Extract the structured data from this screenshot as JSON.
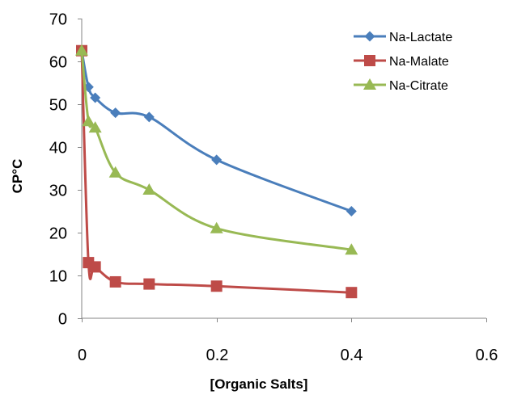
{
  "chart_data": {
    "type": "line",
    "title": "",
    "xlabel": "[Organic Salts]",
    "ylabel": "CP°C",
    "xlim": [
      0,
      0.6
    ],
    "ylim": [
      0,
      70
    ],
    "xticks": [
      0,
      0.2,
      0.4,
      0.6
    ],
    "xtick_labels": [
      "0",
      "0.2",
      "0.4",
      "0.6"
    ],
    "yticks": [
      0,
      10,
      20,
      30,
      40,
      50,
      60,
      70
    ],
    "ytick_labels": [
      "0",
      "10",
      "20",
      "30",
      "40",
      "50",
      "60",
      "70"
    ],
    "grid": false,
    "smooth": true,
    "legend": {
      "position": "top-right"
    },
    "series": [
      {
        "name": "Na-Lactate",
        "color": "#4a7ebb",
        "marker": "diamond",
        "x": [
          0,
          0.01,
          0.02,
          0.05,
          0.1,
          0.2,
          0.4
        ],
        "y": [
          62.5,
          54,
          51.5,
          48,
          47,
          37,
          25
        ]
      },
      {
        "name": "Na-Malate",
        "color": "#be4b48",
        "marker": "square",
        "x": [
          0,
          0.01,
          0.02,
          0.05,
          0.1,
          0.2,
          0.4
        ],
        "y": [
          62.5,
          13,
          12,
          8.5,
          8,
          7.5,
          6
        ]
      },
      {
        "name": "Na-Citrate",
        "color": "#98b954",
        "marker": "triangle",
        "x": [
          0,
          0.01,
          0.02,
          0.05,
          0.1,
          0.2,
          0.4
        ],
        "y": [
          62.5,
          46,
          44.5,
          34,
          30,
          21,
          16
        ]
      }
    ]
  }
}
